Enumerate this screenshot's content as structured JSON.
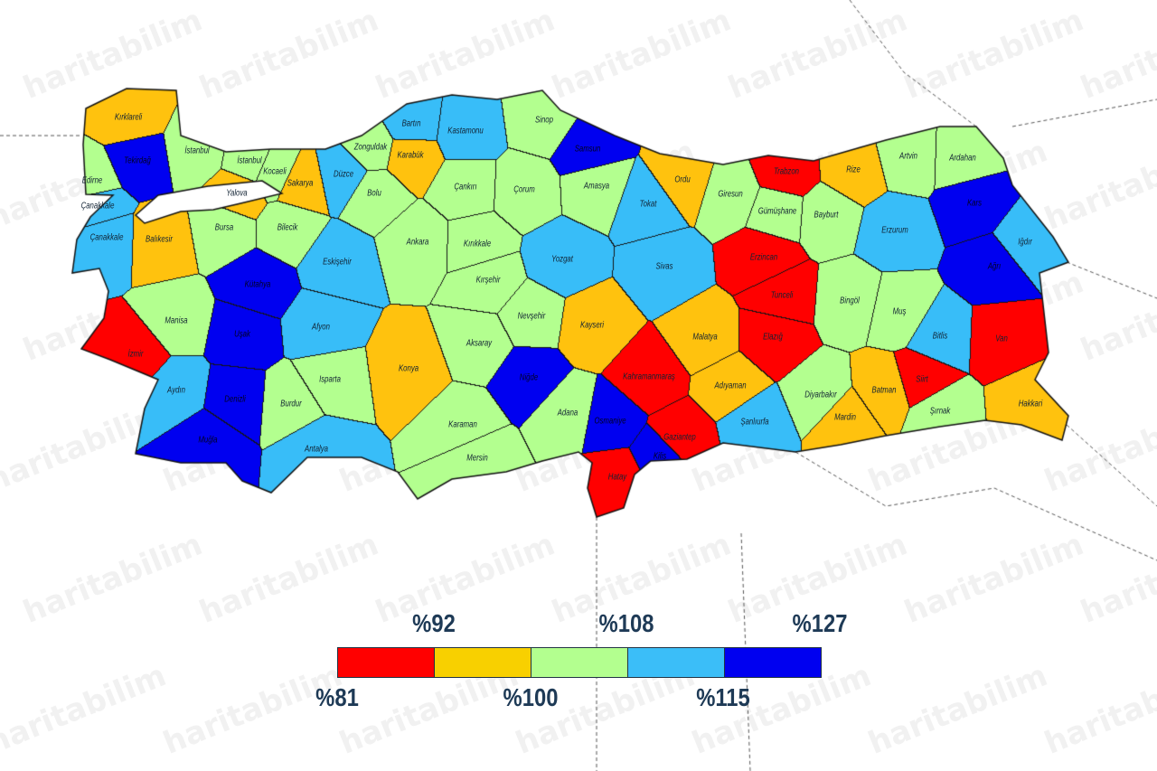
{
  "watermark": "haritabilim",
  "colors": [
    "#ff0000",
    "#ffc20e",
    "#b3ff8f",
    "#38bdf8",
    "#0000f0"
  ],
  "legend": {
    "colors": [
      "#ff0000",
      "#f8d000",
      "#b3ff8f",
      "#3bbef8",
      "#0000f0"
    ],
    "labels_top": [
      "%92",
      "%108",
      "%127"
    ],
    "labels_bottom": [
      "%81",
      "%100",
      "%115"
    ]
  },
  "provinces": [
    {
      "name": "Kırklareli",
      "class": 1
    },
    {
      "name": "Tekirdağ",
      "class": 4
    },
    {
      "name": "Edirne",
      "class": 2
    },
    {
      "name": "İstanbul",
      "class": 2
    },
    {
      "name": "İstanbul",
      "class": 2
    },
    {
      "name": "Kocaeli",
      "class": 2
    },
    {
      "name": "Yalova",
      "class": 1
    },
    {
      "name": "Sakarya",
      "class": 1
    },
    {
      "name": "Düzce",
      "class": 3
    },
    {
      "name": "Zonguldak",
      "class": 2
    },
    {
      "name": "Bartın",
      "class": 3
    },
    {
      "name": "Karabük",
      "class": 1
    },
    {
      "name": "Kastamonu",
      "class": 3
    },
    {
      "name": "Sinop",
      "class": 2
    },
    {
      "name": "Samsun",
      "class": 4
    },
    {
      "name": "Çanakkale",
      "class": 3
    },
    {
      "name": "Çanakkale",
      "class": 3
    },
    {
      "name": "Balıkesir",
      "class": 1
    },
    {
      "name": "Bursa",
      "class": 2
    },
    {
      "name": "Bilecik",
      "class": 2
    },
    {
      "name": "Bolu",
      "class": 2
    },
    {
      "name": "Çankırı",
      "class": 2
    },
    {
      "name": "Çorum",
      "class": 2
    },
    {
      "name": "Amasya",
      "class": 2
    },
    {
      "name": "Ordu",
      "class": 1
    },
    {
      "name": "Tokat",
      "class": 3
    },
    {
      "name": "Giresun",
      "class": 2
    },
    {
      "name": "Trabzon",
      "class": 0
    },
    {
      "name": "Rize",
      "class": 1
    },
    {
      "name": "Artvin",
      "class": 2
    },
    {
      "name": "Ardahan",
      "class": 2
    },
    {
      "name": "Gümüşhane",
      "class": 2
    },
    {
      "name": "Bayburt",
      "class": 2
    },
    {
      "name": "Erzurum",
      "class": 3
    },
    {
      "name": "Kars",
      "class": 4
    },
    {
      "name": "Iğdır",
      "class": 3
    },
    {
      "name": "Ağrı",
      "class": 4
    },
    {
      "name": "Ankara",
      "class": 2
    },
    {
      "name": "Eskişehir",
      "class": 3
    },
    {
      "name": "Kütahya",
      "class": 4
    },
    {
      "name": "Kırıkkale",
      "class": 2
    },
    {
      "name": "Yozgat",
      "class": 3
    },
    {
      "name": "Sivas",
      "class": 3
    },
    {
      "name": "Erzincan",
      "class": 0
    },
    {
      "name": "Tunceli",
      "class": 0
    },
    {
      "name": "Bingöl",
      "class": 2
    },
    {
      "name": "Muş",
      "class": 2
    },
    {
      "name": "Bitlis",
      "class": 3
    },
    {
      "name": "Van",
      "class": 0
    },
    {
      "name": "Manisa",
      "class": 2
    },
    {
      "name": "İzmir",
      "class": 0
    },
    {
      "name": "Uşak",
      "class": 4
    },
    {
      "name": "Afyon",
      "class": 3
    },
    {
      "name": "Kırşehir",
      "class": 2
    },
    {
      "name": "Nevşehir",
      "class": 2
    },
    {
      "name": "Kayseri",
      "class": 1
    },
    {
      "name": "Malatya",
      "class": 1
    },
    {
      "name": "Elazığ",
      "class": 0
    },
    {
      "name": "Aksaray",
      "class": 2
    },
    {
      "name": "Konya",
      "class": 1
    },
    {
      "name": "Isparta",
      "class": 2
    },
    {
      "name": "Aydın",
      "class": 3
    },
    {
      "name": "Denizli",
      "class": 4
    },
    {
      "name": "Burdur",
      "class": 2
    },
    {
      "name": "Niğde",
      "class": 4
    },
    {
      "name": "Kahramanmaraş",
      "class": 0
    },
    {
      "name": "Adıyaman",
      "class": 1
    },
    {
      "name": "Diyarbakır",
      "class": 2
    },
    {
      "name": "Batman",
      "class": 1
    },
    {
      "name": "Siirt",
      "class": 0
    },
    {
      "name": "Hakkari",
      "class": 1
    },
    {
      "name": "Şırnak",
      "class": 2
    },
    {
      "name": "Mardin",
      "class": 1
    },
    {
      "name": "Şanlıurfa",
      "class": 3
    },
    {
      "name": "Gaziantep",
      "class": 0
    },
    {
      "name": "Kilis",
      "class": 4
    },
    {
      "name": "Osmaniye",
      "class": 4
    },
    {
      "name": "Adana",
      "class": 2
    },
    {
      "name": "Hatay",
      "class": 0
    },
    {
      "name": "Karaman",
      "class": 2
    },
    {
      "name": "Mersin",
      "class": 2
    },
    {
      "name": "Antalya",
      "class": 3
    },
    {
      "name": "Muğla",
      "class": 4
    }
  ]
}
